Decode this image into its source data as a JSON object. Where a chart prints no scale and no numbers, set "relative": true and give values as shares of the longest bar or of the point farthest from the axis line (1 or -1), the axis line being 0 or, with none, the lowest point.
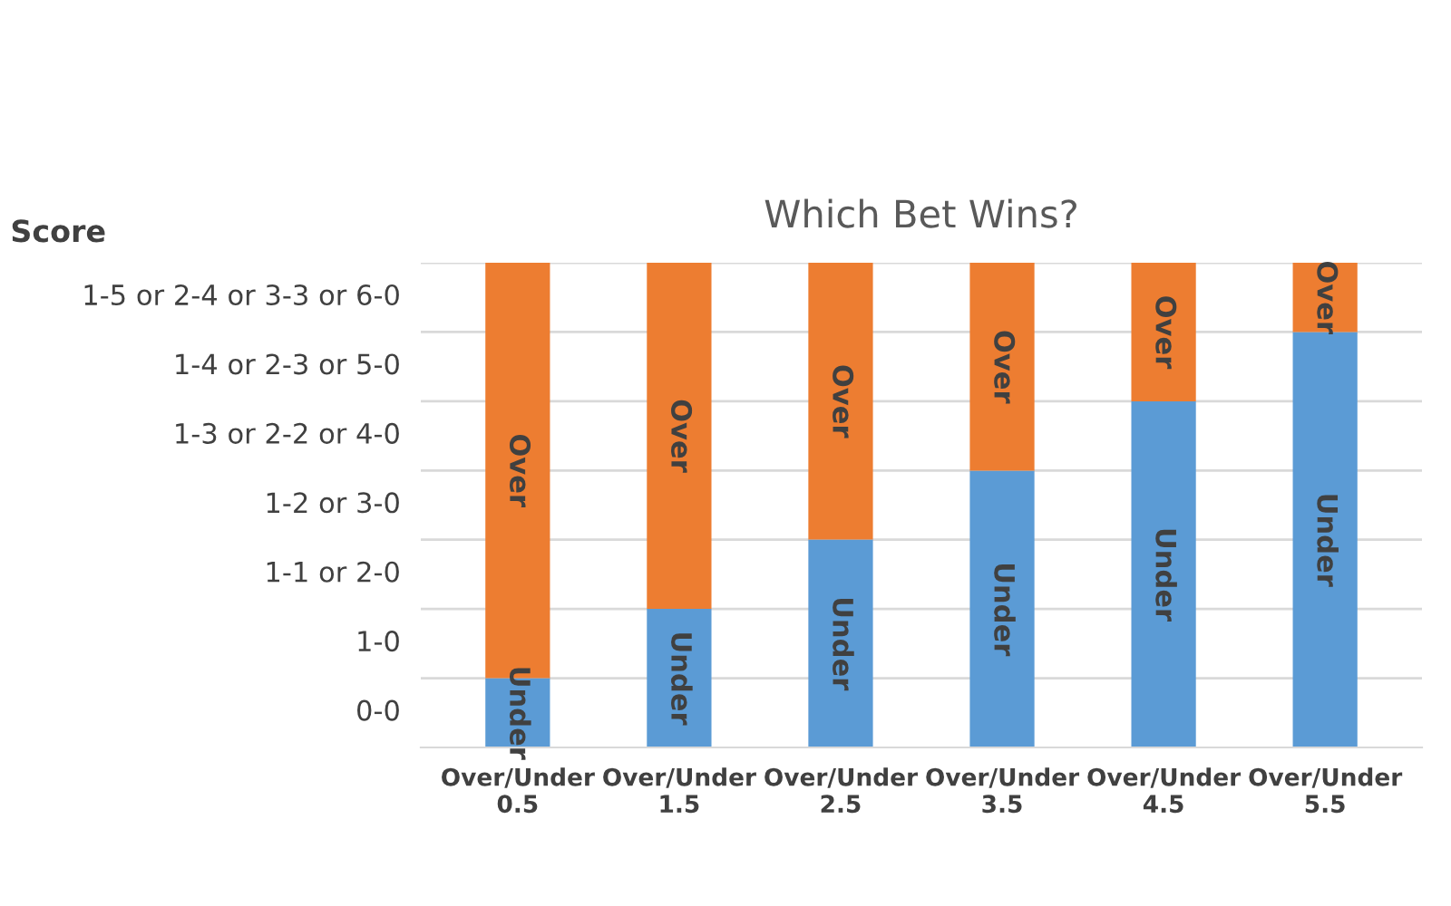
{
  "chart_data": {
    "type": "bar",
    "stacked": true,
    "relative": true,
    "title": "Which Bet Wins?",
    "categories": [
      "Over/Under\n0.5",
      "Over/Under\n1.5",
      "Over/Under\n2.5",
      "Over/Under\n3.5",
      "Over/Under\n4.5",
      "Over/Under\n5.5"
    ],
    "series": [
      {
        "name": "Under",
        "color": "#5b9bd5",
        "values": [
          0.143,
          0.286,
          0.429,
          0.571,
          0.714,
          0.857
        ]
      },
      {
        "name": "Over",
        "color": "#ed7d31",
        "values": [
          0.857,
          0.714,
          0.571,
          0.429,
          0.286,
          0.143
        ]
      }
    ],
    "annotations": [
      "Score",
      "0-0",
      "1-0",
      "1-1 or 2-0",
      "1-2 or 3-0",
      "1-3 or 2-2 or 4-0",
      "1-4 or 2-3 or 5-0",
      "1-5 or 2-4 or 3-3 or 6-0"
    ],
    "grid": "y",
    "legend": false
  }
}
